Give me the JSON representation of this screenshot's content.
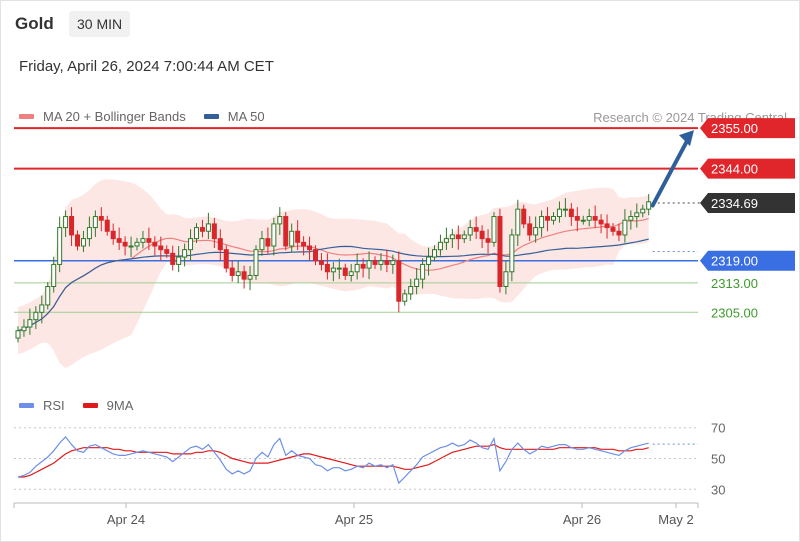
{
  "header": {
    "instrument": "Gold",
    "timeframe": "30 MIN",
    "datetime": "Friday, April 26, 2024 7:00:44 AM CET"
  },
  "legend": {
    "ma20": "MA 20 + Bollinger Bands",
    "ma50": "MA 50",
    "credit": "Research © 2024 Trading Central"
  },
  "rsi_legend": {
    "rsi": "RSI",
    "ma9": "9MA"
  },
  "colors": {
    "resistance": "#e0262b",
    "support_blue": "#3a6fe3",
    "support_green": "#3f9a2e",
    "current": "#333333",
    "ma20": "#f08080",
    "ma50": "#34609a",
    "bands": "#fde4e2",
    "candle_up": "#2f7a2a",
    "candle_down": "#d8262b",
    "arrow": "#2f5f9a",
    "rsi": "#6d8fe8",
    "rsi_ma": "#e01a1a"
  },
  "chart_data": [
    {
      "type": "candlestick",
      "ylim": [
        2282,
        2364
      ],
      "x_tick_labels": [
        "Apr 24",
        "Apr 25",
        "Apr 26",
        "May 2"
      ],
      "levels": [
        {
          "value": 2355.0,
          "label": "2355.00",
          "kind": "resistance"
        },
        {
          "value": 2344.0,
          "label": "2344.00",
          "kind": "resistance"
        },
        {
          "value": 2334.69,
          "label": "2334.69",
          "kind": "current"
        },
        {
          "value": 2319.0,
          "label": "2319.00",
          "kind": "support_blue"
        },
        {
          "value": 2313.0,
          "label": "2313.00",
          "kind": "support_green"
        },
        {
          "value": 2305.0,
          "label": "2305.00",
          "kind": "support_green"
        }
      ],
      "close_series": [
        2300,
        2301,
        2303,
        2305,
        2307,
        2312,
        2318,
        2328,
        2331,
        2326,
        2323,
        2325,
        2328,
        2331,
        2330,
        2327,
        2325,
        2324,
        2323,
        2323,
        2324,
        2325,
        2324,
        2323,
        2322,
        2321,
        2318,
        2320,
        2322,
        2325,
        2328,
        2327,
        2329,
        2325,
        2322,
        2317,
        2315,
        2316,
        2314,
        2315,
        2322,
        2325,
        2323,
        2329,
        2331,
        2323,
        2327,
        2324,
        2323,
        2322,
        2319,
        2318,
        2316,
        2317,
        2317,
        2315,
        2316,
        2318,
        2317,
        2319,
        2318,
        2319,
        2318,
        2319,
        2308,
        2310,
        2312,
        2314,
        2318,
        2320,
        2322,
        2324,
        2325,
        2326,
        2325,
        2326,
        2328,
        2327,
        2325,
        2324,
        2331,
        2312,
        2316,
        2326,
        2333,
        2329,
        2326,
        2328,
        2331,
        2330,
        2331,
        2333,
        2333,
        2331,
        2330,
        2330,
        2331,
        2330,
        2329,
        2328,
        2327,
        2326,
        2330,
        2331,
        2332,
        2333,
        2335
      ],
      "annotation": "projected move toward 2355.00"
    },
    {
      "type": "line",
      "title": "",
      "ylim": [
        25,
        75
      ],
      "y_tick_labels": [
        "70",
        "50",
        "30"
      ],
      "series": [
        {
          "name": "RSI",
          "values": [
            38,
            39,
            41,
            45,
            48,
            51,
            55,
            60,
            64,
            59,
            55,
            54,
            58,
            59,
            57,
            55,
            53,
            52,
            52,
            53,
            54,
            55,
            54,
            53,
            52,
            51,
            48,
            51,
            54,
            57,
            58,
            56,
            59,
            54,
            49,
            43,
            40,
            42,
            40,
            42,
            50,
            54,
            51,
            59,
            63,
            52,
            55,
            52,
            51,
            50,
            46,
            45,
            42,
            44,
            44,
            42,
            43,
            45,
            44,
            47,
            45,
            46,
            44,
            46,
            34,
            38,
            42,
            46,
            51,
            53,
            55,
            57,
            58,
            60,
            58,
            59,
            62,
            60,
            57,
            56,
            63,
            42,
            48,
            56,
            60,
            56,
            53,
            55,
            58,
            57,
            58,
            59,
            59,
            57,
            56,
            56,
            57,
            56,
            55,
            54,
            53,
            52,
            55,
            57,
            58,
            59,
            60
          ]
        },
        {
          "name": "9MA",
          "values": [
            38,
            38,
            39,
            41,
            43,
            45,
            47,
            50,
            53,
            55,
            56,
            57,
            57,
            57,
            57,
            57,
            56,
            56,
            55,
            55,
            54,
            54,
            54,
            54,
            54,
            54,
            53,
            53,
            53,
            53,
            54,
            54,
            55,
            55,
            54,
            52,
            50,
            49,
            48,
            47,
            47,
            47,
            47,
            48,
            49,
            50,
            51,
            52,
            53,
            53,
            52,
            51,
            50,
            49,
            48,
            47,
            46,
            45,
            45,
            45,
            45,
            45,
            45,
            45,
            44,
            43,
            43,
            44,
            45,
            46,
            48,
            50,
            52,
            54,
            55,
            56,
            57,
            58,
            58,
            58,
            59,
            57,
            56,
            56,
            56,
            56,
            56,
            56,
            56,
            56,
            56,
            57,
            57,
            57,
            57,
            57,
            57,
            57,
            56,
            56,
            56,
            55,
            55,
            55,
            56,
            56,
            57
          ]
        }
      ]
    }
  ]
}
